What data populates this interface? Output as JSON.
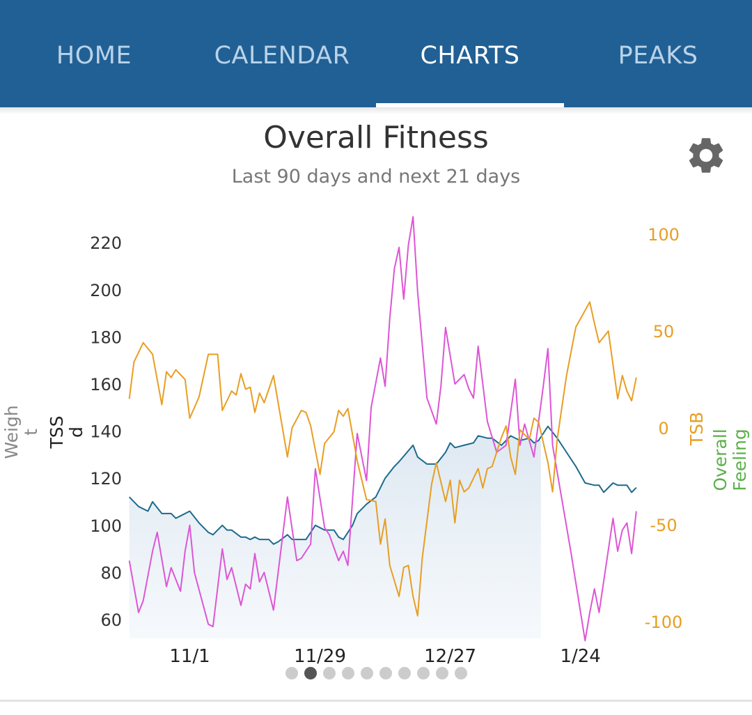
{
  "tabs": [
    {
      "label": "HOME",
      "active": false
    },
    {
      "label": "CALENDAR",
      "active": false
    },
    {
      "label": "CHARTS",
      "active": true
    },
    {
      "label": "PEAKS",
      "active": false
    }
  ],
  "colors": {
    "header": "#216094",
    "tss": "#1d6a8c",
    "atl": "#dd55d6",
    "tsb": "#e89e22",
    "feeling": "#5bb04a"
  },
  "page": {
    "title": "Overall Fitness",
    "subtitle": "Last 90 days and next 21 days",
    "settings_icon": "gear-icon"
  },
  "pagination": {
    "count": 10,
    "active_index": 1
  },
  "chart_data": {
    "type": "line",
    "left_axis": {
      "labels": [
        "Weight",
        "TSS/d"
      ],
      "label_lines": [
        [
          "Weigh",
          "t"
        ],
        [
          "TSS",
          "d"
        ]
      ],
      "ticks": [
        60,
        80,
        100,
        120,
        140,
        160,
        180,
        200,
        220
      ]
    },
    "right_axis": {
      "labels": [
        "TSB",
        "Overall Feeling"
      ],
      "label_lines": [
        [
          "TSB"
        ],
        [
          "Overall",
          "Feeling"
        ]
      ],
      "ticks": [
        -100,
        -50,
        0,
        50,
        100
      ]
    },
    "x_ticks": [
      "11/1",
      "11/29",
      "12/27",
      "1/24"
    ],
    "shaded_through": "1/15",
    "series": [
      {
        "axis": "left",
        "color": "#1d6a8c",
        "filled": true,
        "points": [
          [
            "10/19",
            112
          ],
          [
            "10/21",
            108
          ],
          [
            "10/23",
            106
          ],
          [
            "10/24",
            110
          ],
          [
            "10/26",
            105
          ],
          [
            "10/28",
            105
          ],
          [
            "10/29",
            103
          ],
          [
            "10/30",
            104
          ],
          [
            "11/1",
            106
          ],
          [
            "11/3",
            101
          ],
          [
            "11/5",
            97
          ],
          [
            "11/6",
            96
          ],
          [
            "11/8",
            100
          ],
          [
            "11/9",
            98
          ],
          [
            "11/10",
            98
          ],
          [
            "11/12",
            95
          ],
          [
            "11/13",
            95
          ],
          [
            "11/14",
            94
          ],
          [
            "11/15",
            95
          ],
          [
            "11/16",
            94
          ],
          [
            "11/18",
            94
          ],
          [
            "11/19",
            92
          ],
          [
            "11/20",
            93
          ],
          [
            "11/22",
            96
          ],
          [
            "11/23",
            94
          ],
          [
            "11/25",
            94
          ],
          [
            "11/26",
            94
          ],
          [
            "11/28",
            100
          ],
          [
            "11/30",
            98
          ],
          [
            "12/2",
            98
          ],
          [
            "12/3",
            95
          ],
          [
            "12/4",
            94
          ],
          [
            "12/6",
            100
          ],
          [
            "12/7",
            105
          ],
          [
            "12/9",
            109
          ],
          [
            "12/11",
            112
          ],
          [
            "12/12",
            116
          ],
          [
            "12/13",
            120
          ],
          [
            "12/15",
            125
          ],
          [
            "12/16",
            127
          ],
          [
            "12/19",
            134
          ],
          [
            "12/20",
            129
          ],
          [
            "12/22",
            126
          ],
          [
            "12/24",
            126
          ],
          [
            "12/26",
            131
          ],
          [
            "12/27",
            135
          ],
          [
            "12/28",
            133
          ],
          [
            "12/30",
            134
          ],
          [
            "1/1",
            135
          ],
          [
            "1/2",
            138
          ],
          [
            "1/4",
            137
          ],
          [
            "1/5",
            137
          ],
          [
            "1/7",
            134
          ],
          [
            "1/9",
            138
          ],
          [
            "1/11",
            136
          ],
          [
            "1/13",
            137
          ],
          [
            "1/14",
            135
          ],
          [
            "1/15",
            136
          ],
          [
            "1/17",
            142
          ],
          [
            "1/19",
            137
          ],
          [
            "1/21",
            131
          ],
          [
            "1/23",
            125
          ],
          [
            "1/25",
            118
          ],
          [
            "1/27",
            117
          ],
          [
            "1/28",
            117
          ],
          [
            "1/29",
            114
          ],
          [
            "1/31",
            118
          ],
          [
            "2/1",
            117
          ],
          [
            "2/3",
            117
          ],
          [
            "2/4",
            114
          ],
          [
            "2/5",
            116
          ]
        ]
      },
      {
        "axis": "left",
        "color": "#dd55d6",
        "filled": false,
        "points": [
          [
            "10/19",
            85
          ],
          [
            "10/21",
            63
          ],
          [
            "10/22",
            68
          ],
          [
            "10/24",
            89
          ],
          [
            "10/25",
            97
          ],
          [
            "10/27",
            74
          ],
          [
            "10/28",
            82
          ],
          [
            "10/30",
            72
          ],
          [
            "10/31",
            89
          ],
          [
            "11/1",
            100
          ],
          [
            "11/2",
            80
          ],
          [
            "11/5",
            58
          ],
          [
            "11/6",
            57
          ],
          [
            "11/8",
            90
          ],
          [
            "11/9",
            77
          ],
          [
            "11/10",
            82
          ],
          [
            "11/12",
            66
          ],
          [
            "11/13",
            75
          ],
          [
            "11/14",
            73
          ],
          [
            "11/15",
            88
          ],
          [
            "11/16",
            76
          ],
          [
            "11/17",
            80
          ],
          [
            "11/19",
            64
          ],
          [
            "11/22",
            112
          ],
          [
            "11/24",
            85
          ],
          [
            "11/25",
            86
          ],
          [
            "11/27",
            92
          ],
          [
            "11/28",
            124
          ],
          [
            "11/30",
            99
          ],
          [
            "12/1",
            96
          ],
          [
            "12/3",
            85
          ],
          [
            "12/4",
            89
          ],
          [
            "12/5",
            83
          ],
          [
            "12/7",
            139
          ],
          [
            "12/9",
            119
          ],
          [
            "12/10",
            150
          ],
          [
            "12/12",
            171
          ],
          [
            "12/13",
            159
          ],
          [
            "12/14",
            188
          ],
          [
            "12/15",
            209
          ],
          [
            "12/16",
            218
          ],
          [
            "12/17",
            196
          ],
          [
            "12/18",
            219
          ],
          [
            "12/19",
            231
          ],
          [
            "12/20",
            199
          ],
          [
            "12/22",
            154
          ],
          [
            "12/24",
            143
          ],
          [
            "12/25",
            159
          ],
          [
            "12/26",
            184
          ],
          [
            "12/28",
            160
          ],
          [
            "12/30",
            164
          ],
          [
            "12/31",
            158
          ],
          [
            "1/1",
            154
          ],
          [
            "1/2",
            176
          ],
          [
            "1/4",
            144
          ],
          [
            "1/6",
            131
          ],
          [
            "1/8",
            134
          ],
          [
            "1/10",
            162
          ],
          [
            "1/11",
            134
          ],
          [
            "1/12",
            143
          ],
          [
            "1/14",
            129
          ],
          [
            "1/16",
            159
          ],
          [
            "1/17",
            175
          ],
          [
            "1/18",
            134
          ],
          [
            "1/22",
            88
          ],
          [
            "1/25",
            51
          ],
          [
            "1/26",
            63
          ],
          [
            "1/27",
            73
          ],
          [
            "1/28",
            63
          ],
          [
            "1/31",
            103
          ],
          [
            "2/1",
            89
          ],
          [
            "2/2",
            98
          ],
          [
            "2/3",
            101
          ],
          [
            "2/4",
            88
          ],
          [
            "2/5",
            106
          ]
        ]
      },
      {
        "axis": "right",
        "color": "#e89e22",
        "filled": false,
        "points": [
          [
            "10/19",
            15
          ],
          [
            "10/20",
            34
          ],
          [
            "10/22",
            44
          ],
          [
            "10/24",
            38
          ],
          [
            "10/26",
            12
          ],
          [
            "10/27",
            29
          ],
          [
            "10/28",
            26
          ],
          [
            "10/29",
            30
          ],
          [
            "10/31",
            25
          ],
          [
            "11/1",
            5
          ],
          [
            "11/3",
            16
          ],
          [
            "11/5",
            38
          ],
          [
            "11/7",
            38
          ],
          [
            "11/8",
            9
          ],
          [
            "11/10",
            19
          ],
          [
            "11/11",
            17
          ],
          [
            "11/12",
            28
          ],
          [
            "11/13",
            20
          ],
          [
            "11/14",
            21
          ],
          [
            "11/15",
            8
          ],
          [
            "11/16",
            18
          ],
          [
            "11/17",
            13
          ],
          [
            "11/19",
            27
          ],
          [
            "11/22",
            -15
          ],
          [
            "11/23",
            0
          ],
          [
            "11/25",
            9
          ],
          [
            "11/26",
            8
          ],
          [
            "11/27",
            1
          ],
          [
            "11/29",
            -24
          ],
          [
            "11/30",
            -8
          ],
          [
            "12/2",
            -2
          ],
          [
            "12/3",
            9
          ],
          [
            "12/4",
            6
          ],
          [
            "12/5",
            10
          ],
          [
            "12/7",
            -17
          ],
          [
            "12/9",
            -37
          ],
          [
            "12/11",
            -38
          ],
          [
            "12/12",
            -60
          ],
          [
            "12/13",
            -47
          ],
          [
            "12/14",
            -71
          ],
          [
            "12/16",
            -87
          ],
          [
            "12/17",
            -72
          ],
          [
            "12/18",
            -71
          ],
          [
            "12/19",
            -87
          ],
          [
            "12/20",
            -97
          ],
          [
            "12/21",
            -67
          ],
          [
            "12/23",
            -29
          ],
          [
            "12/24",
            -18
          ],
          [
            "12/26",
            -38
          ],
          [
            "12/27",
            -27
          ],
          [
            "12/28",
            -49
          ],
          [
            "12/29",
            -27
          ],
          [
            "12/30",
            -33
          ],
          [
            "12/31",
            -31
          ],
          [
            "1/2",
            -21
          ],
          [
            "1/3",
            -31
          ],
          [
            "1/4",
            -21
          ],
          [
            "1/5",
            -20
          ],
          [
            "1/7",
            -5
          ],
          [
            "1/8",
            1
          ],
          [
            "1/9",
            -15
          ],
          [
            "1/10",
            -24
          ],
          [
            "1/11",
            -1
          ],
          [
            "1/13",
            -6
          ],
          [
            "1/14",
            5
          ],
          [
            "1/15",
            3
          ],
          [
            "1/17",
            -18
          ],
          [
            "1/18",
            -33
          ],
          [
            "1/19",
            -6
          ],
          [
            "1/21",
            27
          ],
          [
            "1/23",
            52
          ],
          [
            "1/26",
            65
          ],
          [
            "1/27",
            54
          ],
          [
            "1/28",
            44
          ],
          [
            "1/30",
            50
          ],
          [
            "2/1",
            15
          ],
          [
            "2/2",
            27
          ],
          [
            "2/3",
            19
          ],
          [
            "2/4",
            14
          ],
          [
            "2/5",
            26
          ]
        ]
      }
    ]
  }
}
